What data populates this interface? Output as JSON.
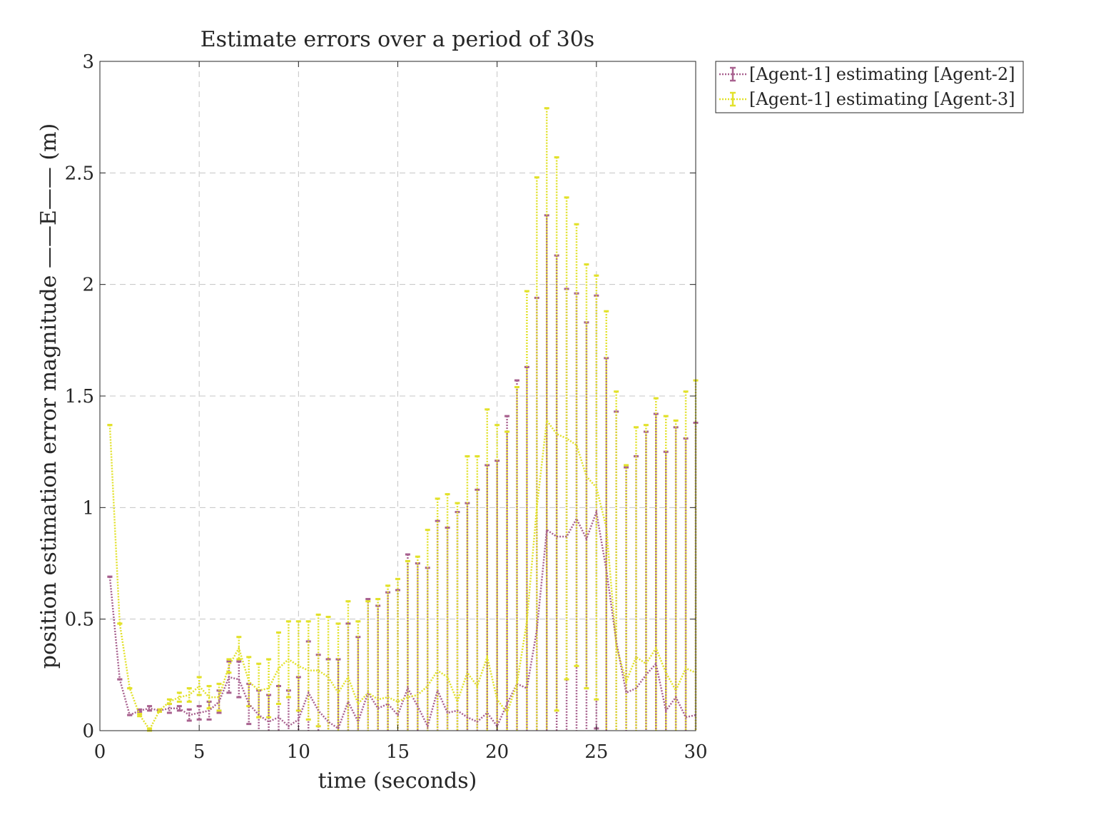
{
  "chart_data": {
    "type": "line",
    "title": "Estimate errors over a period of 30s",
    "xlabel": "time (seconds)",
    "ylabel": "position estimation error magnitude ——E—— (m)",
    "xlim": [
      0,
      30
    ],
    "ylim": [
      0,
      3
    ],
    "xticks": [
      0,
      5,
      10,
      15,
      20,
      25,
      30
    ],
    "yticks": [
      0,
      0.5,
      1,
      1.5,
      2,
      2.5,
      3
    ],
    "xtick_labels": [
      "0",
      "5",
      "10",
      "15",
      "20",
      "25",
      "30"
    ],
    "ytick_labels": [
      "0",
      "0.5",
      "1",
      "1.5",
      "2",
      "2.5",
      "3"
    ],
    "grid": true,
    "legend_position": "outside top-right",
    "x": [
      0.5,
      1,
      1.5,
      2,
      2.5,
      3,
      3.5,
      4,
      4.5,
      5,
      5.5,
      6,
      6.5,
      7,
      7.5,
      8,
      8.5,
      9,
      9.5,
      10,
      10.5,
      11,
      11.5,
      12,
      12.5,
      13,
      13.5,
      14,
      14.5,
      15,
      15.5,
      16,
      16.5,
      17,
      17.5,
      18,
      18.5,
      19,
      19.5,
      20,
      20.5,
      21,
      21.5,
      22,
      22.5,
      23,
      23.5,
      24,
      24.5,
      25,
      25.5,
      26,
      26.5,
      27,
      27.5,
      28,
      28.5,
      29,
      29.5,
      30
    ],
    "series": [
      {
        "name": "[Agent-1] estimating [Agent-2]",
        "color": "#a8618f",
        "values": [
          0.69,
          0.23,
          0.07,
          0.09,
          0.1,
          0.09,
          0.1,
          0.1,
          0.07,
          0.08,
          0.09,
          0.13,
          0.24,
          0.23,
          0.12,
          0.07,
          0.04,
          0.06,
          0.02,
          0.05,
          0.17,
          0.09,
          0.04,
          0.01,
          0.13,
          0.04,
          0.17,
          0.1,
          0.12,
          0.07,
          0.19,
          0.11,
          0.02,
          0.18,
          0.08,
          0.09,
          0.06,
          0.04,
          0.08,
          0.02,
          0.12,
          0.21,
          0.19,
          0.45,
          0.9,
          0.87,
          0.87,
          0.95,
          0.86,
          0.98,
          0.72,
          0.4,
          0.17,
          0.19,
          0.25,
          0.3,
          0.09,
          0.15,
          0.06,
          0.07
        ],
        "err": [
          0.0,
          0.0,
          0.0,
          0.005,
          0.01,
          0.005,
          0.02,
          0.01,
          0.025,
          0.03,
          0.04,
          0.05,
          0.07,
          0.08,
          0.09,
          0.11,
          0.12,
          0.14,
          0.16,
          0.19,
          0.23,
          0.25,
          0.28,
          0.31,
          0.35,
          0.38,
          0.42,
          0.46,
          0.5,
          0.56,
          0.6,
          0.64,
          0.71,
          0.76,
          0.83,
          0.89,
          0.96,
          1.04,
          1.11,
          1.19,
          1.29,
          1.36,
          1.44,
          1.49,
          1.41,
          1.26,
          1.11,
          1.01,
          0.97,
          0.97,
          0.95,
          1.03,
          1.01,
          1.04,
          1.09,
          1.12,
          1.16,
          1.21,
          1.25,
          1.31
        ]
      },
      {
        "name": "[Agent-1] estimating [Agent-3]",
        "color": "#e2e12a",
        "values": [
          1.37,
          0.48,
          0.19,
          0.07,
          0.005,
          0.09,
          0.13,
          0.15,
          0.16,
          0.2,
          0.15,
          0.15,
          0.29,
          0.37,
          0.22,
          0.18,
          0.19,
          0.28,
          0.32,
          0.29,
          0.27,
          0.27,
          0.24,
          0.17,
          0.24,
          0.12,
          0.17,
          0.14,
          0.15,
          0.13,
          0.15,
          0.16,
          0.2,
          0.27,
          0.24,
          0.13,
          0.26,
          0.2,
          0.33,
          0.14,
          0.08,
          0.21,
          0.49,
          1.0,
          1.39,
          1.33,
          1.31,
          1.28,
          1.14,
          1.09,
          0.91,
          0.38,
          0.22,
          0.33,
          0.3,
          0.37,
          0.26,
          0.18,
          0.28,
          0.26
        ],
        "err": [
          0.0,
          0.0,
          0.0,
          0.005,
          0.005,
          0.005,
          0.01,
          0.02,
          0.03,
          0.04,
          0.05,
          0.06,
          0.03,
          0.05,
          0.11,
          0.12,
          0.13,
          0.16,
          0.17,
          0.2,
          0.22,
          0.25,
          0.27,
          0.31,
          0.34,
          0.37,
          0.41,
          0.45,
          0.5,
          0.55,
          0.61,
          0.62,
          0.7,
          0.77,
          0.82,
          0.89,
          0.97,
          1.03,
          1.11,
          1.23,
          1.26,
          1.33,
          1.48,
          1.48,
          1.4,
          1.24,
          1.08,
          0.99,
          0.95,
          0.95,
          0.97,
          1.14,
          0.97,
          1.03,
          1.07,
          1.12,
          1.15,
          1.21,
          1.24,
          1.31
        ]
      }
    ]
  }
}
